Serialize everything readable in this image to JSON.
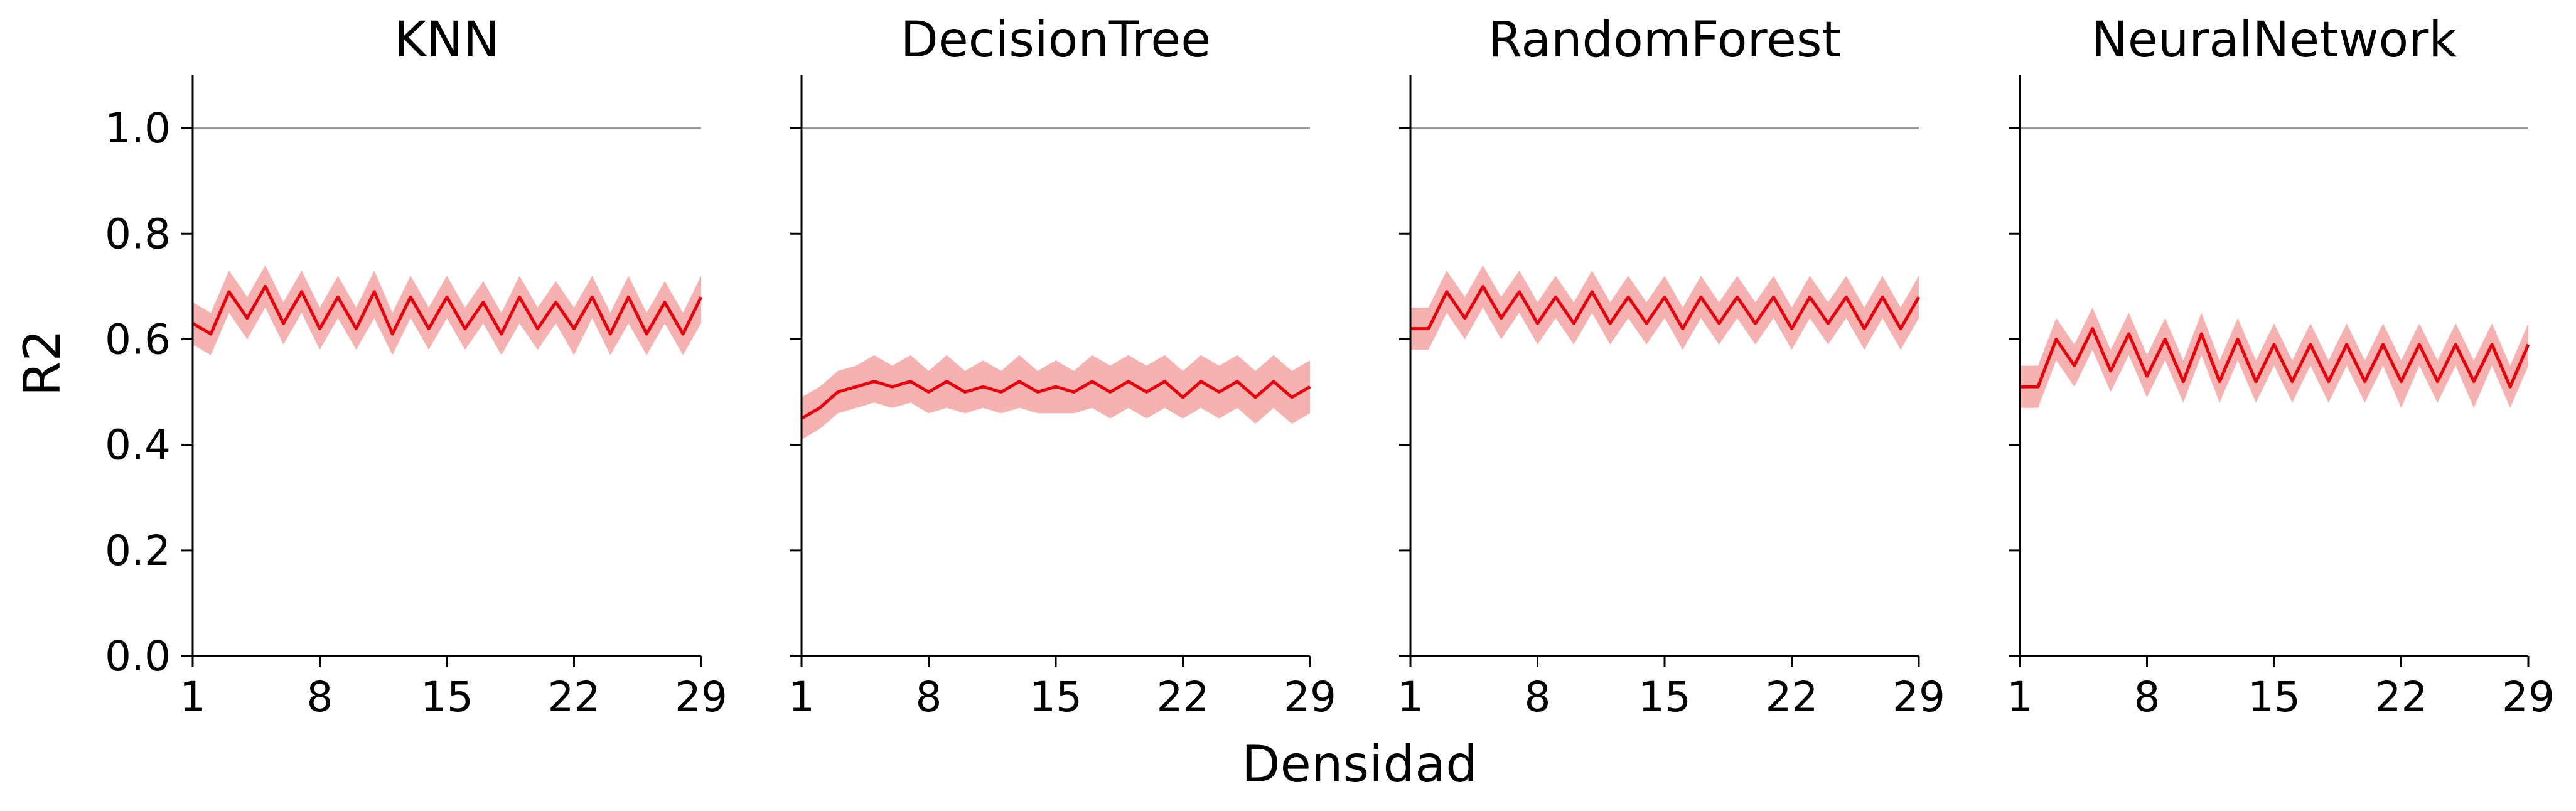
{
  "figure": {
    "xlabel": "Densidad",
    "ylabel": "R2",
    "colors": {
      "line": "#e8000b",
      "band": "#f4a3a3",
      "reference_line": "#9a9a9a",
      "axis": "#000000"
    }
  },
  "chart_data": [
    {
      "type": "line",
      "title": "KNN",
      "xlim": [
        1,
        29
      ],
      "ylim": [
        0.0,
        1.1
      ],
      "xticks": [
        1,
        8,
        15,
        22,
        29
      ],
      "yticks": [
        "0.0",
        "0.2",
        "0.4",
        "0.6",
        "0.8",
        "1.0"
      ],
      "reference_y": 1.0,
      "grid": false,
      "x": [
        1,
        2,
        3,
        4,
        5,
        6,
        7,
        8,
        9,
        10,
        11,
        12,
        13,
        14,
        15,
        16,
        17,
        18,
        19,
        20,
        21,
        22,
        23,
        24,
        25,
        26,
        27,
        28,
        29
      ],
      "series": [
        {
          "values": [
            0.63,
            0.61,
            0.69,
            0.64,
            0.7,
            0.63,
            0.69,
            0.62,
            0.68,
            0.62,
            0.69,
            0.61,
            0.68,
            0.62,
            0.68,
            0.62,
            0.67,
            0.61,
            0.68,
            0.62,
            0.67,
            0.62,
            0.68,
            0.61,
            0.68,
            0.61,
            0.67,
            0.61,
            0.68
          ],
          "lower": [
            0.59,
            0.57,
            0.65,
            0.6,
            0.66,
            0.59,
            0.65,
            0.58,
            0.64,
            0.58,
            0.64,
            0.57,
            0.64,
            0.58,
            0.64,
            0.58,
            0.63,
            0.57,
            0.63,
            0.58,
            0.63,
            0.57,
            0.64,
            0.57,
            0.63,
            0.57,
            0.63,
            0.57,
            0.63
          ],
          "upper": [
            0.67,
            0.65,
            0.73,
            0.68,
            0.74,
            0.67,
            0.73,
            0.66,
            0.72,
            0.66,
            0.73,
            0.65,
            0.72,
            0.66,
            0.72,
            0.66,
            0.71,
            0.65,
            0.72,
            0.66,
            0.71,
            0.66,
            0.72,
            0.65,
            0.72,
            0.65,
            0.71,
            0.65,
            0.72
          ]
        }
      ]
    },
    {
      "type": "line",
      "title": "DecisionTree",
      "xlim": [
        1,
        29
      ],
      "ylim": [
        0.0,
        1.1
      ],
      "xticks": [
        1,
        8,
        15,
        22,
        29
      ],
      "yticks": [
        "0.0",
        "0.2",
        "0.4",
        "0.6",
        "0.8",
        "1.0"
      ],
      "reference_y": 1.0,
      "grid": false,
      "x": [
        1,
        2,
        3,
        4,
        5,
        6,
        7,
        8,
        9,
        10,
        11,
        12,
        13,
        14,
        15,
        16,
        17,
        18,
        19,
        20,
        21,
        22,
        23,
        24,
        25,
        26,
        27,
        28,
        29
      ],
      "series": [
        {
          "values": [
            0.45,
            0.47,
            0.5,
            0.51,
            0.52,
            0.51,
            0.52,
            0.5,
            0.52,
            0.5,
            0.51,
            0.5,
            0.52,
            0.5,
            0.51,
            0.5,
            0.52,
            0.5,
            0.52,
            0.5,
            0.52,
            0.49,
            0.52,
            0.5,
            0.52,
            0.49,
            0.52,
            0.49,
            0.51
          ],
          "lower": [
            0.41,
            0.43,
            0.46,
            0.47,
            0.48,
            0.47,
            0.48,
            0.46,
            0.47,
            0.46,
            0.47,
            0.46,
            0.47,
            0.46,
            0.46,
            0.46,
            0.47,
            0.45,
            0.47,
            0.45,
            0.47,
            0.45,
            0.47,
            0.45,
            0.47,
            0.44,
            0.47,
            0.44,
            0.46
          ],
          "upper": [
            0.49,
            0.51,
            0.54,
            0.55,
            0.57,
            0.55,
            0.57,
            0.54,
            0.57,
            0.54,
            0.56,
            0.54,
            0.57,
            0.54,
            0.56,
            0.54,
            0.57,
            0.55,
            0.57,
            0.55,
            0.57,
            0.54,
            0.57,
            0.55,
            0.57,
            0.54,
            0.57,
            0.54,
            0.56
          ]
        }
      ]
    },
    {
      "type": "line",
      "title": "RandomForest",
      "xlim": [
        1,
        29
      ],
      "ylim": [
        0.0,
        1.1
      ],
      "xticks": [
        1,
        8,
        15,
        22,
        29
      ],
      "yticks": [
        "0.0",
        "0.2",
        "0.4",
        "0.6",
        "0.8",
        "1.0"
      ],
      "reference_y": 1.0,
      "grid": false,
      "x": [
        1,
        2,
        3,
        4,
        5,
        6,
        7,
        8,
        9,
        10,
        11,
        12,
        13,
        14,
        15,
        16,
        17,
        18,
        19,
        20,
        21,
        22,
        23,
        24,
        25,
        26,
        27,
        28,
        29
      ],
      "series": [
        {
          "values": [
            0.62,
            0.62,
            0.69,
            0.64,
            0.7,
            0.64,
            0.69,
            0.63,
            0.68,
            0.63,
            0.69,
            0.63,
            0.68,
            0.63,
            0.68,
            0.62,
            0.68,
            0.63,
            0.68,
            0.63,
            0.68,
            0.62,
            0.68,
            0.63,
            0.68,
            0.62,
            0.68,
            0.62,
            0.68
          ],
          "lower": [
            0.58,
            0.58,
            0.65,
            0.6,
            0.66,
            0.6,
            0.65,
            0.59,
            0.64,
            0.59,
            0.65,
            0.59,
            0.64,
            0.59,
            0.64,
            0.58,
            0.64,
            0.59,
            0.64,
            0.59,
            0.64,
            0.58,
            0.64,
            0.59,
            0.64,
            0.58,
            0.64,
            0.58,
            0.64
          ],
          "upper": [
            0.66,
            0.66,
            0.73,
            0.68,
            0.74,
            0.68,
            0.73,
            0.67,
            0.72,
            0.67,
            0.73,
            0.67,
            0.72,
            0.67,
            0.72,
            0.66,
            0.72,
            0.67,
            0.72,
            0.67,
            0.72,
            0.66,
            0.72,
            0.67,
            0.72,
            0.66,
            0.72,
            0.66,
            0.72
          ]
        }
      ]
    },
    {
      "type": "line",
      "title": "NeuralNetwork",
      "xlim": [
        1,
        29
      ],
      "ylim": [
        0.0,
        1.1
      ],
      "xticks": [
        1,
        8,
        15,
        22,
        29
      ],
      "yticks": [
        "0.0",
        "0.2",
        "0.4",
        "0.6",
        "0.8",
        "1.0"
      ],
      "reference_y": 1.0,
      "grid": false,
      "x": [
        1,
        2,
        3,
        4,
        5,
        6,
        7,
        8,
        9,
        10,
        11,
        12,
        13,
        14,
        15,
        16,
        17,
        18,
        19,
        20,
        21,
        22,
        23,
        24,
        25,
        26,
        27,
        28,
        29
      ],
      "series": [
        {
          "values": [
            0.51,
            0.51,
            0.6,
            0.55,
            0.62,
            0.54,
            0.61,
            0.53,
            0.6,
            0.52,
            0.61,
            0.52,
            0.6,
            0.52,
            0.59,
            0.52,
            0.59,
            0.52,
            0.59,
            0.52,
            0.59,
            0.52,
            0.59,
            0.52,
            0.59,
            0.52,
            0.59,
            0.51,
            0.59
          ],
          "lower": [
            0.47,
            0.47,
            0.56,
            0.51,
            0.58,
            0.5,
            0.57,
            0.49,
            0.56,
            0.48,
            0.57,
            0.48,
            0.56,
            0.48,
            0.55,
            0.48,
            0.55,
            0.48,
            0.55,
            0.48,
            0.55,
            0.47,
            0.55,
            0.48,
            0.55,
            0.47,
            0.55,
            0.47,
            0.55
          ],
          "upper": [
            0.55,
            0.55,
            0.64,
            0.59,
            0.66,
            0.58,
            0.65,
            0.57,
            0.64,
            0.56,
            0.65,
            0.56,
            0.64,
            0.56,
            0.63,
            0.56,
            0.63,
            0.56,
            0.63,
            0.56,
            0.63,
            0.56,
            0.63,
            0.56,
            0.63,
            0.56,
            0.63,
            0.55,
            0.63
          ]
        }
      ]
    }
  ]
}
